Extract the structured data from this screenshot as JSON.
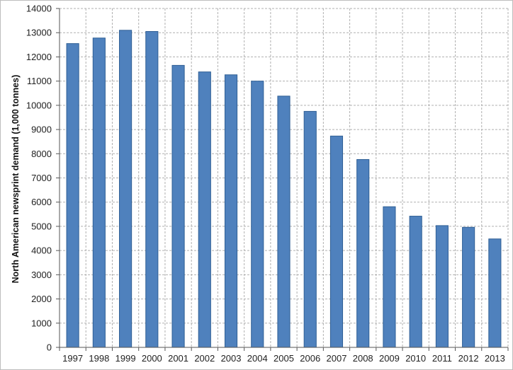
{
  "chart_data": {
    "type": "bar",
    "title": "",
    "xlabel": "",
    "ylabel": "North American newsprint demand (1,000 tonnes)",
    "categories": [
      "1997",
      "1998",
      "1999",
      "2000",
      "2001",
      "2002",
      "2003",
      "2004",
      "2005",
      "2006",
      "2007",
      "2008",
      "2009",
      "2010",
      "2011",
      "2012",
      "2013"
    ],
    "values": [
      12550,
      12780,
      13100,
      13050,
      11650,
      11380,
      11260,
      11000,
      10380,
      9750,
      8730,
      7760,
      5810,
      5420,
      5030,
      4960,
      4480
    ],
    "ylim": [
      0,
      14000
    ],
    "yticks": [
      0,
      1000,
      2000,
      3000,
      4000,
      5000,
      6000,
      7000,
      8000,
      9000,
      10000,
      11000,
      12000,
      13000,
      14000
    ],
    "grid": true,
    "bar_color": "#4f81bd",
    "bar_edge_color": "#2f5f95",
    "grid_color": "#b0b0b0"
  }
}
